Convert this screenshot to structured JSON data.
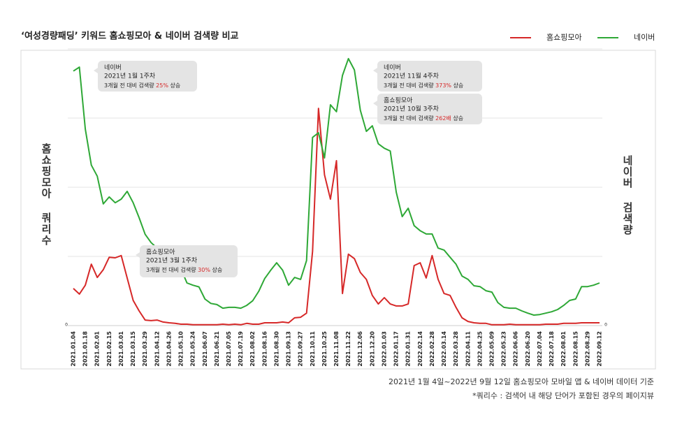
{
  "chart_data": {
    "type": "line",
    "title": "‘여성경량패딩’ 키워드 홈쇼핑모아 & 네이버 검색량 비교",
    "ylabel": "홈쇼핑모아 쿼리수",
    "y2label": "네이버 검색량",
    "categories": [
      "2021.01.04",
      null,
      "2021.01.18",
      null,
      "2021.02.01",
      null,
      "2021.02.15",
      null,
      "2021.03.01",
      null,
      "2021.03.15",
      null,
      "2021.03.29",
      null,
      "2021.04.12",
      null,
      "2021.04.26",
      null,
      "2021.05.10",
      null,
      "2021.05.24",
      null,
      "2021.06.07",
      null,
      "2021.06.21",
      null,
      "2021.07.05",
      null,
      "2021.07.19",
      null,
      "2021.08.02",
      null,
      "2021.08.16",
      null,
      "2021.08.30",
      null,
      "2021.09.13",
      null,
      "2021.09.27",
      null,
      "2021.10.11",
      null,
      "2021.10.25",
      null,
      "2021.11.08",
      null,
      "2021.11.22",
      null,
      "2021.12.06",
      null,
      "2021.12.20",
      null,
      "2022.01.03",
      null,
      "2022.01.17",
      null,
      "2022.01.31",
      null,
      "2022.02.14",
      null,
      "2022.02.28",
      null,
      "2022.03.14",
      null,
      "2022.03.28",
      null,
      "2022.04.11",
      null,
      "2022.04.25",
      null,
      "2022.05.09",
      null,
      "2022.05.23",
      null,
      "2022.06.06",
      null,
      "2022.06.20",
      null,
      "2022.07.04",
      null,
      "2022.07.18",
      null,
      "2022.08.01",
      null,
      "2022.08.15",
      null,
      "2022.08.29",
      null,
      "2022.09.12"
    ],
    "series": [
      {
        "name": "홈쇼핑모아",
        "color": "#d62828",
        "axis": "y",
        "values": [
          13.4,
          11.4,
          14.6,
          22.2,
          17.4,
          20.2,
          24.7,
          24.5,
          25.3,
          17.2,
          9.1,
          5.3,
          2,
          1.8,
          2,
          1.3,
          1,
          0.8,
          0.5,
          0.5,
          0.3,
          0.3,
          0.3,
          0.3,
          0.3,
          0.5,
          0.3,
          0.5,
          0.3,
          0.8,
          0.5,
          0.5,
          1,
          1,
          1,
          1.3,
          1,
          2.8,
          3,
          4.5,
          26.8,
          78.5,
          54.5,
          45.7,
          59.6,
          11.6,
          25.8,
          24.2,
          19.2,
          16.7,
          10.9,
          7.8,
          10.1,
          7.8,
          7.1,
          7.1,
          7.8,
          21.7,
          22.7,
          17.2,
          25.3,
          16.7,
          11.6,
          10.9,
          6.6,
          2.8,
          1.5,
          1,
          0.8,
          0.8,
          0.3,
          0.3,
          0.3,
          0.5,
          0.3,
          0.3,
          0.3,
          0.3,
          0.3,
          0.5,
          0.5,
          0.5,
          0.8,
          0.8,
          0.8,
          1,
          1,
          1,
          1
        ]
      },
      {
        "name": "네이버",
        "color": "#2ea836",
        "axis": "y2",
        "values": [
          92,
          93.4,
          71,
          58,
          54,
          44,
          46.5,
          44.4,
          45.7,
          48.5,
          44.4,
          39,
          33,
          30,
          28,
          27,
          24,
          22,
          20.5,
          15.4,
          14.6,
          14,
          9.6,
          8,
          7.6,
          6.3,
          6.6,
          6.6,
          6.3,
          7.3,
          9,
          12.4,
          17,
          20,
          22.7,
          20,
          14.6,
          17.4,
          16.7,
          23.5,
          68,
          69.7,
          60.6,
          79.8,
          77.3,
          90.4,
          96.5,
          92.4,
          77.8,
          70.2,
          72.2,
          65.7,
          64.1,
          63.1,
          48.2,
          39.4,
          42.4,
          36.1,
          34.3,
          33.1,
          33.1,
          28,
          27.3,
          24.7,
          22.2,
          17.9,
          16.7,
          14.4,
          14.1,
          12.6,
          12.1,
          8.3,
          6.6,
          6.3,
          6.3,
          5.3,
          4.5,
          3.8,
          4,
          4.5,
          5,
          5.8,
          7.3,
          9.1,
          9.6,
          14.1,
          14.1,
          14.6,
          15.4
        ]
      }
    ],
    "ylim": [
      0,
      100
    ],
    "yticks": [
      0
    ],
    "y2lim": [
      0,
      100
    ],
    "y2ticks": [
      0
    ],
    "grid": true,
    "legend": "top-right",
    "annotations": [
      {
        "label": "네이버",
        "period": "2021년 1월 1주차",
        "text": "3개월 전 대비 검색량 ",
        "highlight": "25%",
        "suffix": " 상승"
      },
      {
        "label": "네이버",
        "period": "2021년 11월 4주차",
        "text": "3개월 전 대비 검색량 ",
        "highlight": "373%",
        "suffix": " 상승"
      },
      {
        "label": "홈쇼핑모아",
        "period": "2021년 10월 3주차",
        "text": "3개월 전 대비 검색량 ",
        "highlight": "262배",
        "suffix": " 상승"
      },
      {
        "label": "홈쇼핑모아",
        "period": "2021년 3월 1주차",
        "text": "3개월 전 대비 검색량 ",
        "highlight": "30%",
        "suffix": " 상승"
      }
    ],
    "notes": [
      "2021년 1월 4일~2022년 9월 12일 홈쇼핑모아 모바일 앱 & 네이버 데이터 기준",
      "*쿼리수 : 검색어 내 해당 단어가 포함된 경우의 페이지뷰"
    ]
  }
}
